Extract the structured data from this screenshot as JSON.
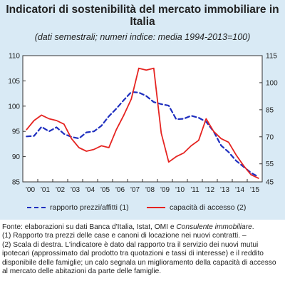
{
  "chart_data": {
    "type": "line",
    "title": "Indicatori di sostenibilità del mercato immobiliare in Italia",
    "subtitle": "(dati semestrali; numeri indice: media 1994-2013=100)",
    "x_tick_labels": [
      "'00",
      "'01",
      "'02",
      "'03",
      "'04",
      "'05",
      "'06",
      "'07",
      "'08",
      "'09",
      "'10",
      "'11",
      "'12",
      "'13",
      "'14",
      "'15"
    ],
    "xlim": [
      2000,
      2016
    ],
    "y_left": {
      "lim": [
        85,
        110
      ],
      "ticks": [
        85,
        90,
        95,
        100,
        105,
        110
      ]
    },
    "y_right": {
      "lim": [
        45,
        115
      ],
      "ticks": [
        45,
        55,
        70,
        85,
        100,
        115
      ]
    },
    "grid": false,
    "legend_position": "bottom",
    "series": [
      {
        "name": "rapporto prezzi/affitti (1)",
        "axis": "left",
        "style": "dashed",
        "color": "#1f2fbf",
        "x": [
          2000.0,
          2000.5,
          2001.0,
          2001.5,
          2002.0,
          2002.5,
          2003.0,
          2003.5,
          2004.0,
          2004.5,
          2005.0,
          2005.5,
          2006.0,
          2006.5,
          2007.0,
          2007.5,
          2008.0,
          2008.5,
          2009.0,
          2009.5,
          2010.0,
          2010.5,
          2011.0,
          2011.5,
          2012.0,
          2012.5,
          2013.0,
          2013.5,
          2014.0,
          2014.5,
          2015.0,
          2015.5
        ],
        "values": [
          94.0,
          94.1,
          95.9,
          95.0,
          95.8,
          94.5,
          93.9,
          93.6,
          94.8,
          95.0,
          96.1,
          98.0,
          99.5,
          101.2,
          102.8,
          102.7,
          102.0,
          100.8,
          100.4,
          100.1,
          97.4,
          97.5,
          98.1,
          97.7,
          96.9,
          95.0,
          92.2,
          90.9,
          89.2,
          88.0,
          86.8,
          86.0
        ]
      },
      {
        "name": "capacità di accesso (2)",
        "axis": "right",
        "style": "solid",
        "color": "#e52421",
        "x": [
          2000.0,
          2000.5,
          2001.0,
          2001.5,
          2002.0,
          2002.5,
          2003.0,
          2003.5,
          2004.0,
          2004.5,
          2005.0,
          2005.5,
          2006.0,
          2006.5,
          2007.0,
          2007.5,
          2008.0,
          2008.5,
          2009.0,
          2009.5,
          2010.0,
          2010.5,
          2011.0,
          2011.5,
          2012.0,
          2012.5,
          2013.0,
          2013.5,
          2014.0,
          2014.5,
          2015.0,
          2015.5
        ],
        "values": [
          74,
          79,
          82,
          80,
          79,
          77,
          69,
          64,
          62,
          63,
          65,
          64,
          74,
          82,
          91,
          108,
          107,
          108,
          72,
          56,
          59,
          61,
          65,
          68,
          80,
          73,
          69,
          67,
          60,
          54,
          49,
          47
        ]
      }
    ]
  },
  "legend": {
    "items": [
      "rapporto prezzi/affitti (1)",
      "capacità di accesso (2)"
    ]
  },
  "source_note": {
    "line1_prefix": "Fonte: elaborazioni su dati Banca d'Italia, Istat, OMI e ",
    "line1_em": "Consulente immobiliare",
    "line1_suffix": ".",
    "note1": "(1) Rapporto tra prezzi delle case e canoni di locazione nei nuovi contratti. –",
    "note2": "(2) Scala di destra. L'indicatore è dato dal rapporto tra il servizio dei nuovi mutui ipotecari (approssimato dal prodotto tra quotazioni e tassi di interesse) e il reddito disponibile delle famiglie; un calo segnala un miglioramento della capacità di accesso al mercato delle abitazioni da parte delle famiglie."
  }
}
